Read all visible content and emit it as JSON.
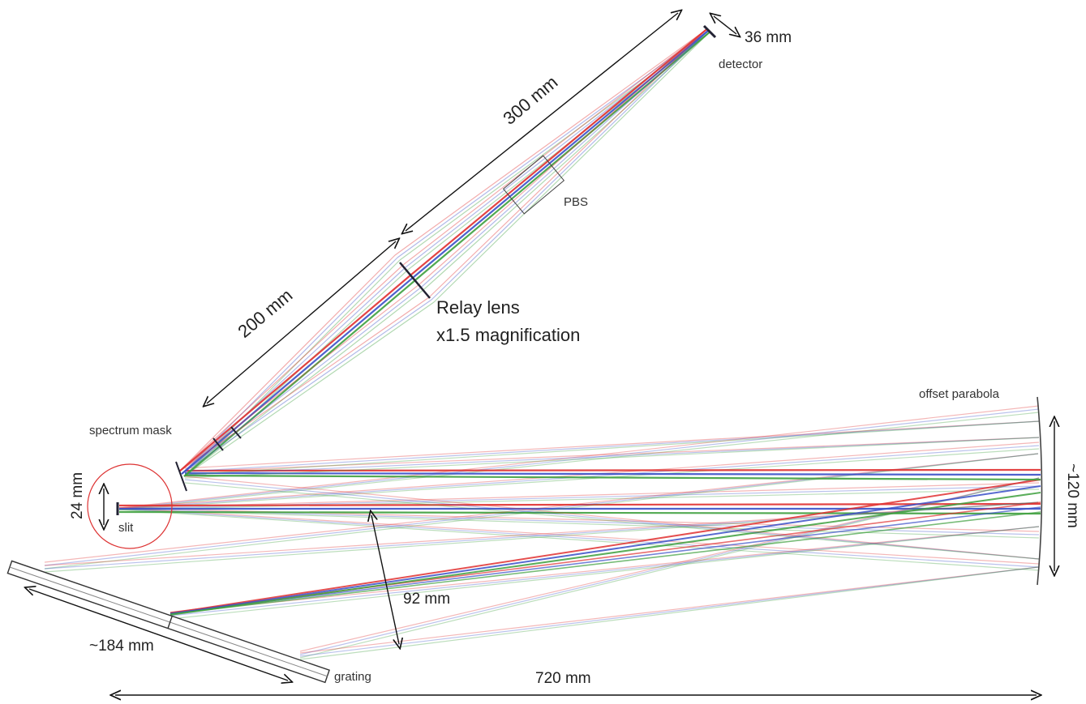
{
  "labels": {
    "detector_size": "36 mm",
    "detector": "detector",
    "relay_to_detector": "300 mm",
    "pbs": "PBS",
    "mask_to_relay": "200 mm",
    "relay_lens": "Relay lens",
    "magnification": "x1.5 magnification",
    "spectrum_mask": "spectrum mask",
    "offset_parabola": "offset parabola",
    "parabola_size": "~120 mm",
    "slit_size": "24 mm",
    "slit": "slit",
    "grating_offset": "92 mm",
    "grating_size": "~184 mm",
    "grating": "grating",
    "total_length": "720 mm"
  }
}
